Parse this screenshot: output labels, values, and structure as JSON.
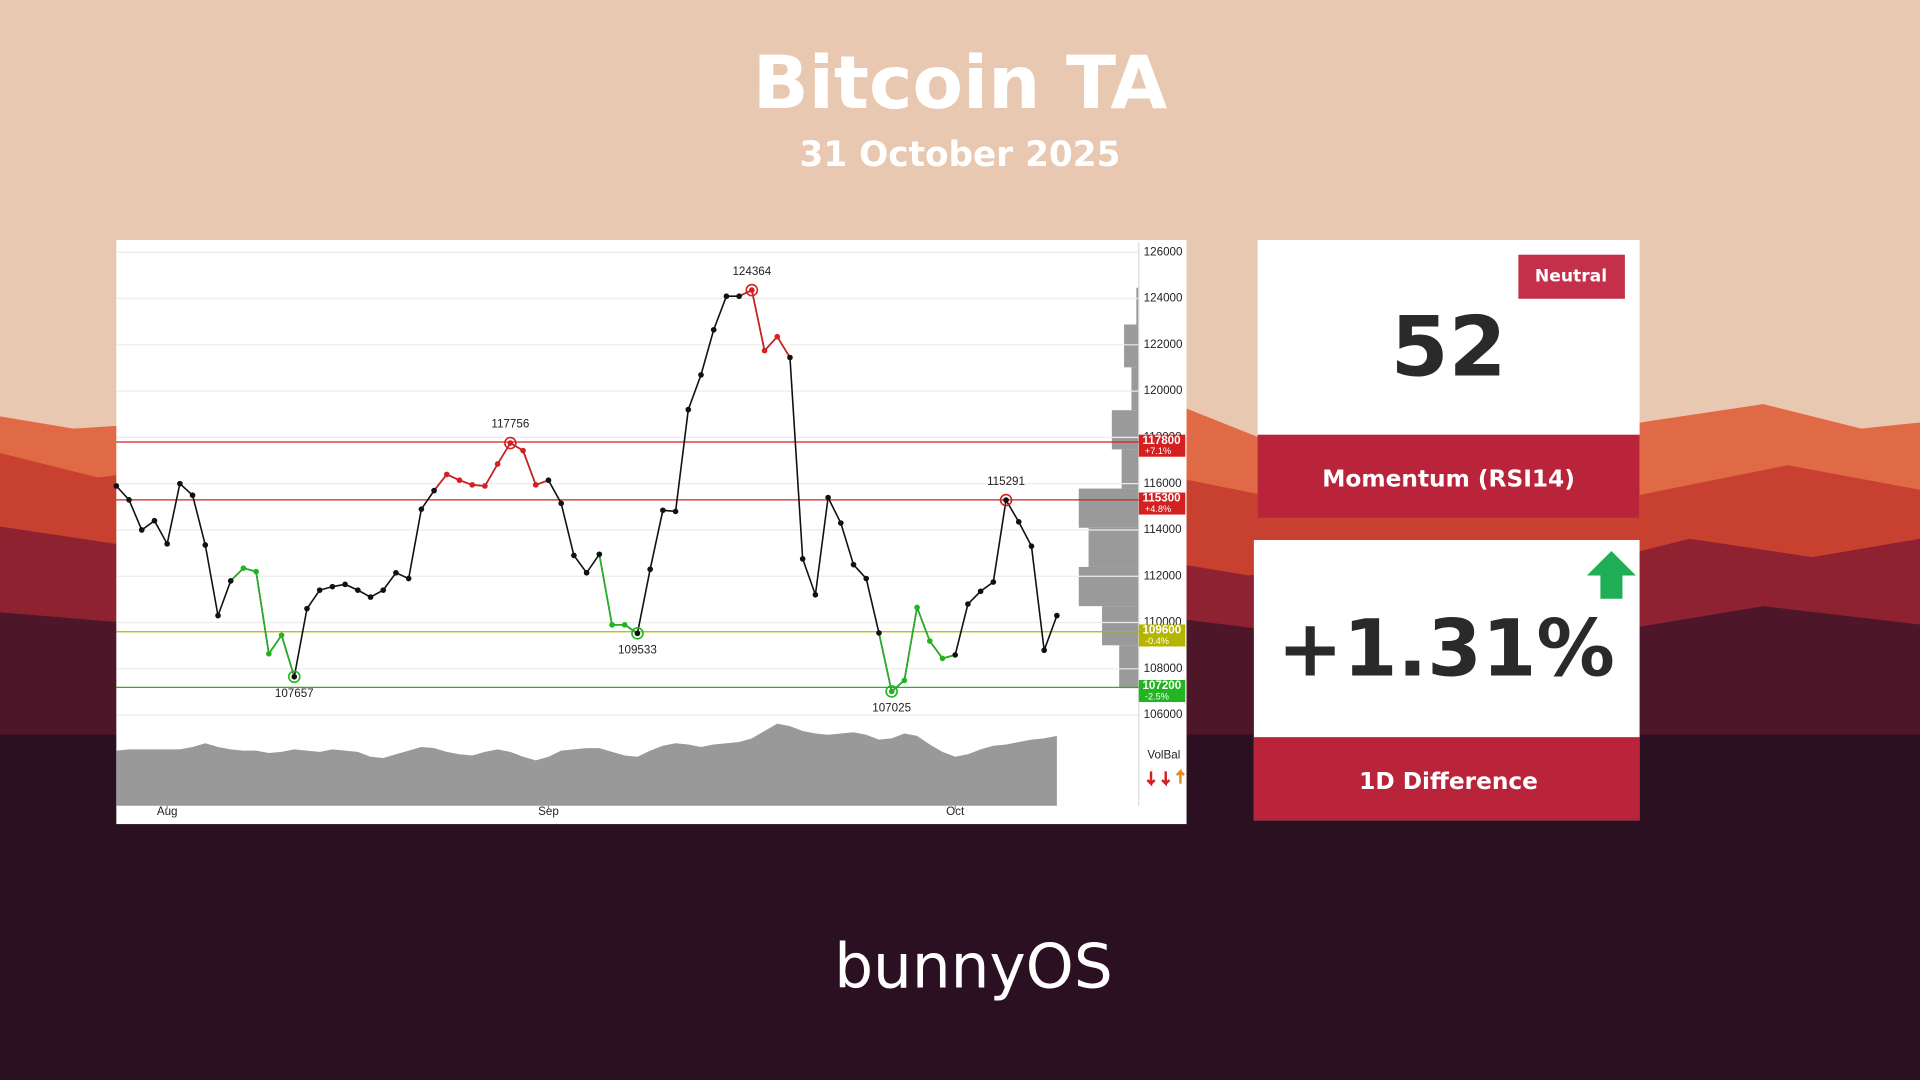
{
  "header": {
    "title": "Bitcoin TA",
    "date": "31 October 2025"
  },
  "chart_data": {
    "type": "line",
    "color": "#111111",
    "grid": true,
    "categories": [
      null,
      null,
      null,
      null,
      "Aug",
      null,
      null,
      null,
      null,
      null,
      null,
      null,
      null,
      null,
      null,
      null,
      null,
      null,
      null,
      null,
      null,
      null,
      null,
      null,
      null,
      null,
      null,
      null,
      null,
      null,
      null,
      null,
      null,
      null,
      "Sep",
      null,
      null,
      null,
      null,
      null,
      null,
      null,
      null,
      null,
      null,
      null,
      null,
      null,
      null,
      null,
      null,
      null,
      null,
      null,
      null,
      null,
      null,
      null,
      null,
      null,
      null,
      null,
      null,
      null,
      null,
      null,
      "Oct",
      null,
      null,
      null,
      null,
      null,
      null,
      null,
      null
    ],
    "values": [
      115900,
      115300,
      114000,
      114400,
      113400,
      116000,
      115500,
      113350,
      110300,
      111800,
      112350,
      112200,
      108650,
      109450,
      107657,
      110600,
      111400,
      111550,
      111650,
      111400,
      111100,
      111400,
      112150,
      111900,
      114900,
      115700,
      116400,
      116150,
      115950,
      115900,
      116850,
      117756,
      117430,
      115950,
      116150,
      115150,
      112900,
      112150,
      112950,
      109900,
      109900,
      109533,
      112300,
      114850,
      114800,
      119200,
      120700,
      122650,
      124100,
      124100,
      124364,
      121750,
      122350,
      121450,
      112750,
      111200,
      115400,
      114300,
      112500,
      111900,
      109550,
      107025,
      107500,
      110650,
      109200,
      108450,
      108600,
      110800,
      111350,
      111750,
      115291,
      114350,
      113300,
      108800,
      110300
    ],
    "volume": [
      45,
      46,
      46,
      46,
      46,
      46,
      48,
      51,
      48,
      46,
      45,
      45,
      43,
      44,
      46,
      45,
      44,
      46,
      45,
      44,
      40,
      39,
      42,
      45,
      48,
      47,
      44,
      42,
      41,
      44,
      46,
      44,
      40,
      37,
      40,
      45,
      46,
      47,
      47,
      44,
      41,
      40,
      45,
      49,
      51,
      50,
      48,
      50,
      51,
      52,
      55,
      61,
      67,
      65,
      61,
      59,
      58,
      59,
      60,
      58,
      54,
      55,
      59,
      57,
      50,
      44,
      40,
      42,
      46,
      49,
      50,
      52,
      54,
      55,
      57
    ],
    "volume_color": "#999999",
    "highlights": [
      {
        "from": 9,
        "to": 14,
        "color": "#22b422"
      },
      {
        "from": 25,
        "to": 34,
        "color": "#d32020"
      },
      {
        "from": 38,
        "to": 41,
        "color": "#22b422"
      },
      {
        "from": 49,
        "to": 53,
        "color": "#d32020"
      },
      {
        "from": 60,
        "to": 66,
        "color": "#22b422"
      }
    ],
    "markers": [
      {
        "index": 14,
        "color": "#22b422",
        "position": "below"
      },
      {
        "index": 31,
        "color": "#d32020",
        "position": "above"
      },
      {
        "index": 41,
        "color": "#22b422",
        "position": "below"
      },
      {
        "index": 50,
        "color": "#d32020",
        "position": "above"
      },
      {
        "index": 61,
        "color": "#22b422",
        "position": "below"
      },
      {
        "index": 70,
        "color": "#d32020",
        "position": "above"
      }
    ],
    "levels": [
      {
        "value": 117800,
        "change": "+7.1%",
        "color": "#d32020"
      },
      {
        "value": 115300,
        "change": "+4.8%",
        "color": "#d32020"
      },
      {
        "value": 109600,
        "change": "-0.4%",
        "color": "#b5b500"
      },
      {
        "value": 107200,
        "change": "-2.5%",
        "color": "#22b422"
      }
    ],
    "ylim": [
      106000,
      126000
    ],
    "yticks": [
      106000,
      108000,
      110000,
      112000,
      114000,
      116000,
      118000,
      120000,
      122000,
      124000,
      126000
    ],
    "indicator": "VolBal"
  },
  "rsi": {
    "status": "Neutral",
    "value": 52,
    "label": "Momentum (RSI14)"
  },
  "difference": {
    "value": "+1.31%",
    "label": "1D Difference"
  },
  "footer": {
    "brand": "bunnyOS"
  }
}
